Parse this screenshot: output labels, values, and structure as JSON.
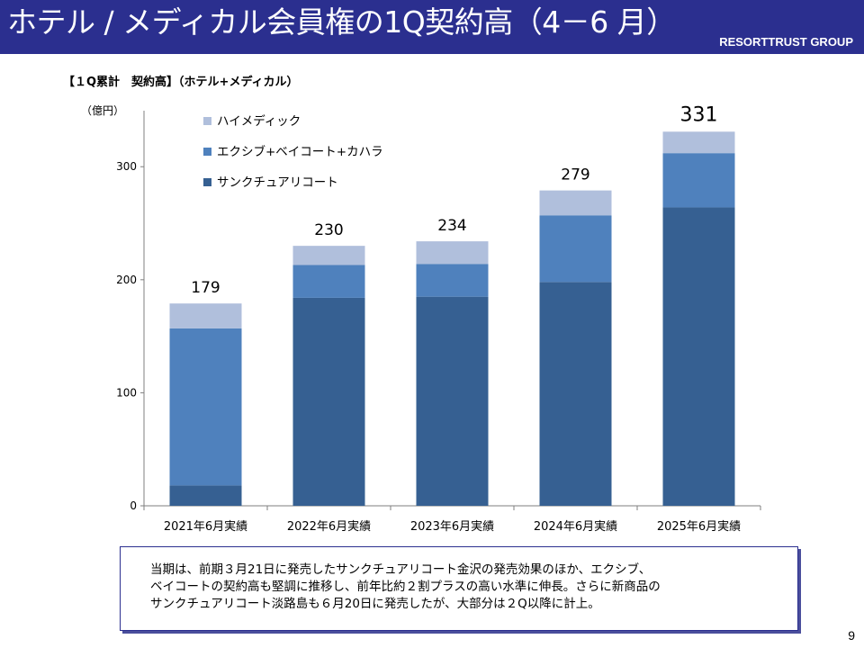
{
  "slide": {
    "title": "ホテル / メディカル会員権の1Q契約高（4－6 月）",
    "brand": "RESORTTRUST GROUP",
    "subtitle": "【１Q累計　契約高】（ホテル+メディカル）",
    "unit": "（億円）",
    "page_number": "9",
    "note_lines": [
      "当期は、前期３月21日に発売したサンクチュアリコート金沢の発売効果のほか、エクシブ、",
      "ベイコートの契約高も堅調に推移し、前年比約２割プラスの高い水準に伸長。さらに新商品の",
      "サンクチュアリコート淡路島も６月20日に発売したが、大部分は２Q以降に計上。"
    ]
  },
  "chart_data": {
    "type": "bar",
    "stacked": true,
    "categories": [
      "2021年6月実績",
      "2022年6月実績",
      "2023年6月実績",
      "2024年6月実績",
      "2025年6月実績"
    ],
    "series": [
      {
        "name": "サンクチュアリコート",
        "color": "#366092",
        "values": [
          18,
          184,
          185,
          198,
          264
        ]
      },
      {
        "name": "エクシブ+ベイコート+カハラ",
        "color": "#4f81bd",
        "values": [
          139,
          29,
          29,
          59,
          48
        ]
      },
      {
        "name": "ハイメディック",
        "color": "#b0bfdc",
        "values": [
          22,
          17,
          20,
          22,
          19
        ]
      }
    ],
    "totals": [
      "179",
      "230",
      "234",
      "279",
      "331"
    ],
    "legend_order": [
      "ハイメディック",
      "エクシブ+ベイコート+カハラ",
      "サンクチュアリコート"
    ],
    "ylim": [
      0,
      340
    ],
    "yticks": [
      "0",
      "100",
      "200",
      "300"
    ],
    "grid": false,
    "legend_position": "top-left"
  }
}
